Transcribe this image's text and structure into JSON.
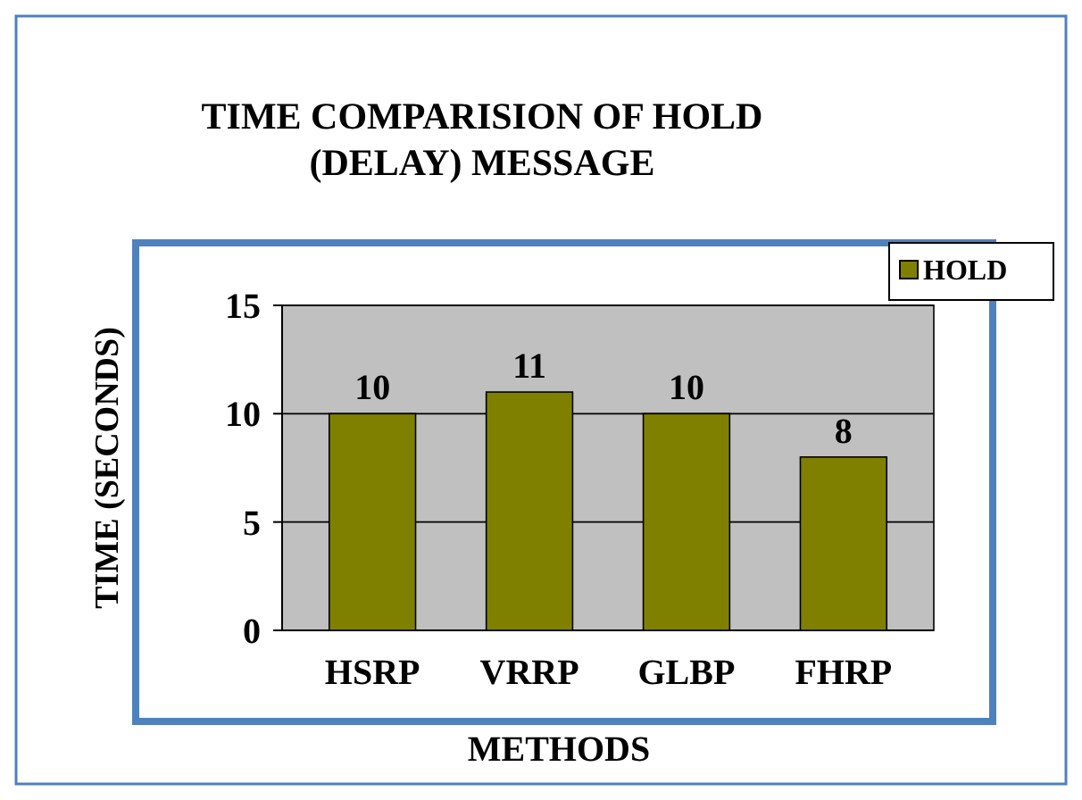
{
  "chart_data": {
    "type": "bar",
    "title": "TIME COMPARISION OF HOLD (DELAY) MESSAGE",
    "xlabel": "METHODS",
    "ylabel": "TIME (SECONDS)",
    "categories": [
      "HSRP",
      "VRRP",
      "GLBP",
      "FHRP"
    ],
    "series": [
      {
        "name": "HOLD",
        "color": "#808000",
        "values": [
          10,
          11,
          10,
          8
        ]
      }
    ],
    "ylim": [
      0,
      15
    ],
    "yticks": [
      0,
      5,
      10,
      15
    ],
    "grid": "y",
    "legend": "top right",
    "data_labels": true
  }
}
